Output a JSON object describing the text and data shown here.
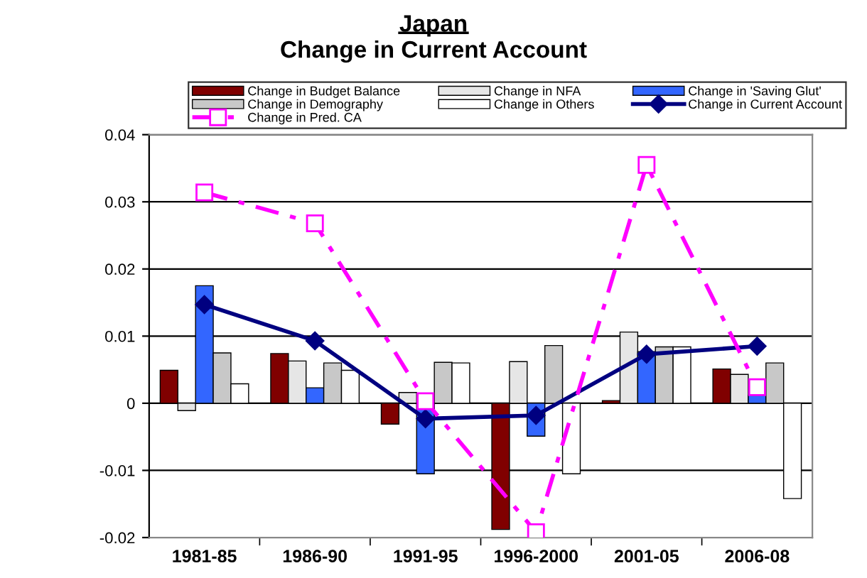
{
  "chart_data": {
    "type": "bar",
    "title": "Japan",
    "subtitle": "Change in Current Account",
    "categories": [
      "1981-85",
      "1986-90",
      "1991-95",
      "1996-2000",
      "2001-05",
      "2006-08"
    ],
    "series": [
      {
        "name": "Change in Budget Balance",
        "color": "#800000",
        "values": [
          0.0049,
          0.0074,
          -0.0031,
          -0.0188,
          0.0004,
          0.0051
        ]
      },
      {
        "name": "Change in NFA",
        "color": "#e6e6e6",
        "values": [
          -0.0011,
          0.0063,
          0.0016,
          0.0062,
          0.0106,
          0.0043
        ]
      },
      {
        "name": "Change in 'Saving Glut'",
        "color": "#3366ff",
        "values": [
          0.0175,
          0.0023,
          -0.0105,
          -0.0049,
          0.0077,
          0.0012
        ]
      },
      {
        "name": "Change in Demography",
        "color": "#c8c8c8",
        "values": [
          0.0075,
          0.006,
          0.0061,
          0.0086,
          0.0084,
          0.006
        ]
      },
      {
        "name": "Change in Others",
        "color": "#ffffff",
        "values": [
          0.0029,
          0.0049,
          0.006,
          -0.0105,
          0.0084,
          -0.0142
        ]
      },
      {
        "name": "Change in Current Account",
        "type": "line",
        "color": "#000080",
        "marker": "diamond",
        "line_style": "solid",
        "values": [
          0.0147,
          0.0093,
          -0.0023,
          -0.0018,
          0.0073,
          0.0085
        ]
      },
      {
        "name": "Change in Pred. CA",
        "type": "line",
        "color": "#ff00ff",
        "marker": "square",
        "line_style": "dashed",
        "values": [
          0.0314,
          0.0268,
          0.0003,
          -0.0192,
          0.0355,
          0.0024
        ]
      }
    ],
    "ylim": [
      -0.02,
      0.04
    ],
    "yticks": [
      {
        "value": -0.02,
        "label": "-0.02"
      },
      {
        "value": -0.01,
        "label": "-0.01"
      },
      0,
      0.01,
      0.02,
      0.03,
      0.04
    ],
    "grid": "y",
    "legend": "top"
  }
}
